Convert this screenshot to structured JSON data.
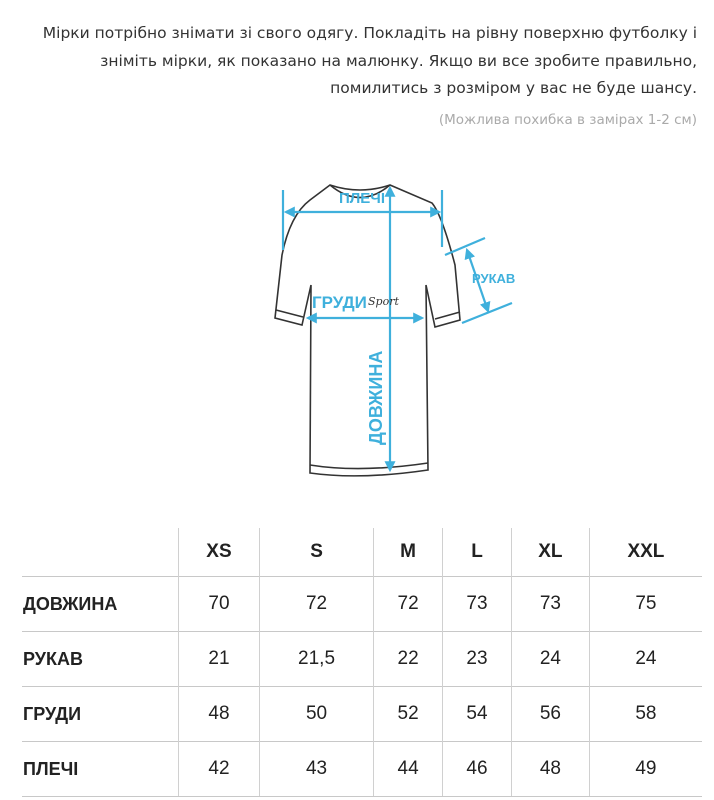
{
  "intro_text": "Мірки потрібно знімати зі свого одягу. Покладіть на рівну поверхню футболку і зніміть мірки, як показано на малюнку. Якщо ви все зробите правильно, помилитись з розміром у вас не буде шансу.",
  "note": "(Можлива похибка в замірах 1-2 см)",
  "diagram": {
    "shoulders": "ПЛЕЧІ",
    "sleeve": "РУКАВ",
    "chest": "ГРУДИ",
    "length": "ДОВЖИНА",
    "logo": "Sport",
    "accent_color": "#3fb0dc"
  },
  "table": {
    "sizes": [
      "XS",
      "S",
      "M",
      "L",
      "XL",
      "XXL"
    ],
    "rows": [
      {
        "label": "ДОВЖИНА",
        "values": [
          "70",
          "72",
          "72",
          "73",
          "73",
          "75"
        ]
      },
      {
        "label": "РУКАВ",
        "values": [
          "21",
          "21,5",
          "22",
          "23",
          "24",
          "24"
        ]
      },
      {
        "label": "ГРУДИ",
        "values": [
          "48",
          "50",
          "52",
          "54",
          "56",
          "58"
        ]
      },
      {
        "label": "ПЛЕЧІ",
        "values": [
          "42",
          "43",
          "44",
          "46",
          "48",
          "49"
        ]
      }
    ]
  }
}
